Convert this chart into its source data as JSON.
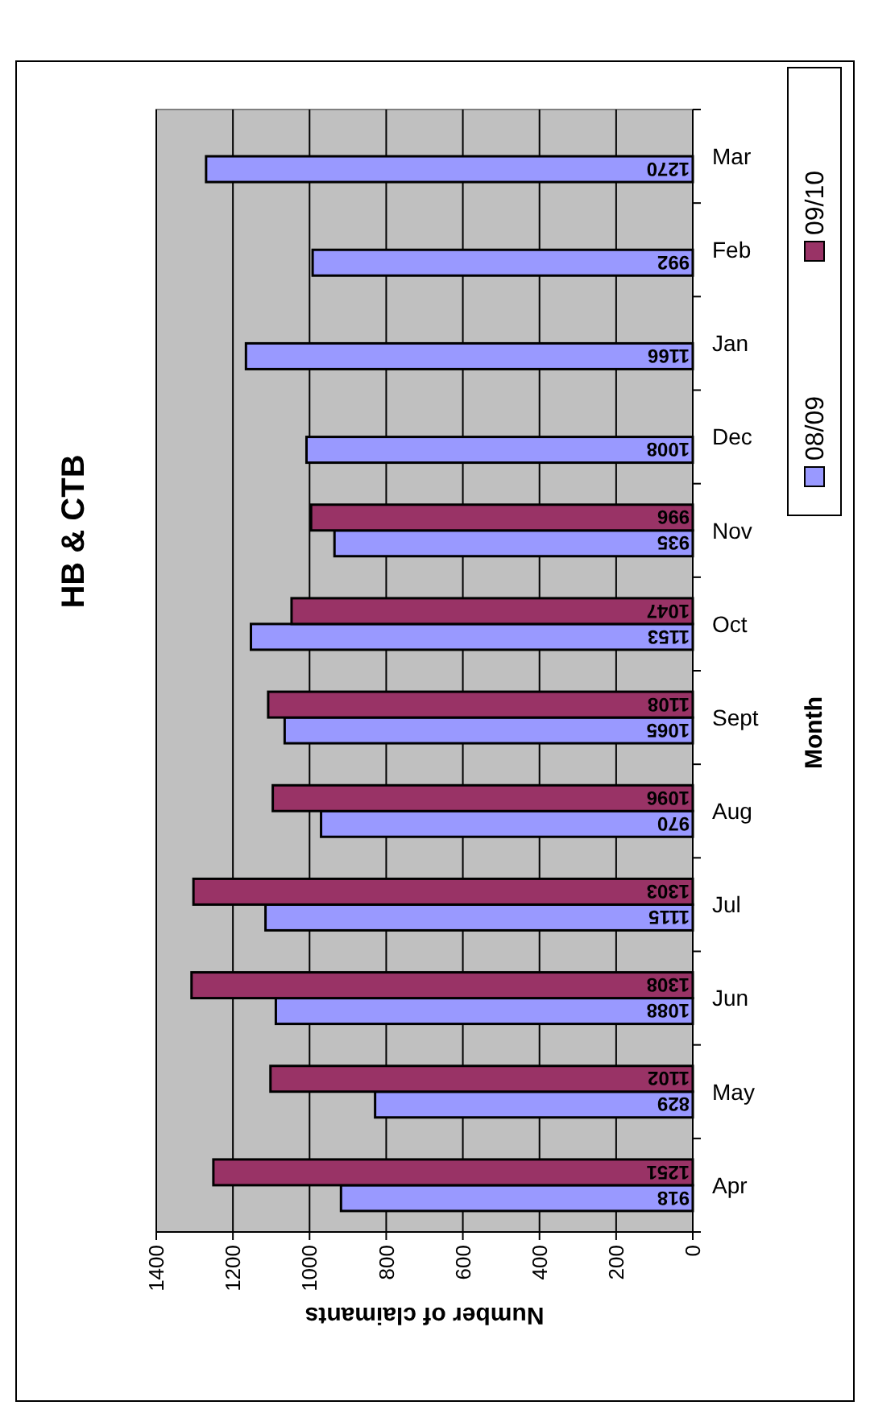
{
  "chart_data": {
    "type": "bar",
    "orientation": "horizontal",
    "title": "HB & CTB",
    "xlabel": "Number of claimants",
    "ylabel": "Month",
    "categories": [
      "Mar",
      "Feb",
      "Jan",
      "Dec",
      "Nov",
      "Oct",
      "Sept",
      "Aug",
      "Jul",
      "Jun",
      "May",
      "Apr"
    ],
    "series": [
      {
        "name": "08/09",
        "color": "#9999ff",
        "values": [
          1270,
          992,
          1166,
          1008,
          935,
          1153,
          1065,
          970,
          1115,
          1088,
          829,
          918
        ]
      },
      {
        "name": "09/10",
        "color": "#993366",
        "values": [
          null,
          null,
          null,
          null,
          996,
          1047,
          1108,
          1096,
          1303,
          1308,
          1102,
          1251
        ]
      }
    ],
    "xlim": [
      1400,
      0
    ],
    "xticks": [
      1400,
      1200,
      1000,
      800,
      600,
      400,
      200,
      0
    ],
    "grid": "x",
    "legend": "top right",
    "data_labels": true
  }
}
